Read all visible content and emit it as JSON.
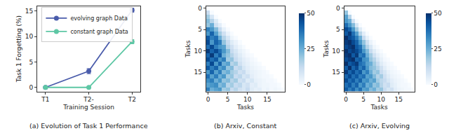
{
  "chart_data": [
    {
      "type": "line",
      "title": "(a) Evolution of Task 1 Performance",
      "x_label": "Training Session",
      "y_label": "Task 1 Forgetting (%)",
      "categories": [
        "T1",
        "T2-",
        "T2"
      ],
      "series": [
        {
          "name": "evolving graph Data",
          "color": "#4a5cab",
          "marker": "circle",
          "values": [
            0,
            3.2,
            15.2
          ],
          "error": [
            0.1,
            0.5,
            0.4
          ]
        },
        {
          "name": "constant graph Data",
          "color": "#5ec7a5",
          "marker": "circle",
          "values": [
            0,
            0,
            9.0
          ],
          "error": [
            0.1,
            0.1,
            0.4
          ]
        }
      ],
      "ylim": [
        -0.8,
        16
      ],
      "yticks": [
        0,
        5,
        10,
        15
      ],
      "grid": false,
      "legend": "upper left"
    },
    {
      "type": "heatmap",
      "title": "(b) Arxiv, Constant",
      "x_label": "Tasks",
      "y_label": "Tasks",
      "x": [
        0,
        1,
        2,
        3,
        4,
        5,
        6,
        7,
        8,
        9,
        10,
        11,
        12,
        13,
        14,
        15,
        16,
        17,
        18,
        19
      ],
      "y": [
        0,
        1,
        2,
        3,
        4,
        5,
        6,
        7,
        8,
        9,
        10,
        11,
        12,
        13,
        14,
        15,
        16,
        17,
        18,
        19
      ],
      "z": [
        [
          0,
          null,
          null,
          null,
          null,
          null,
          null,
          null,
          null,
          null,
          null,
          null,
          null,
          null,
          null,
          null,
          null,
          null,
          null,
          null
        ],
        [
          12,
          0,
          null,
          null,
          null,
          null,
          null,
          null,
          null,
          null,
          null,
          null,
          null,
          null,
          null,
          null,
          null,
          null,
          null,
          null
        ],
        [
          18,
          8,
          0,
          null,
          null,
          null,
          null,
          null,
          null,
          null,
          null,
          null,
          null,
          null,
          null,
          null,
          null,
          null,
          null,
          null
        ],
        [
          22,
          15,
          6,
          0,
          null,
          null,
          null,
          null,
          null,
          null,
          null,
          null,
          null,
          null,
          null,
          null,
          null,
          null,
          null,
          null
        ],
        [
          20,
          25,
          10,
          5,
          0,
          null,
          null,
          null,
          null,
          null,
          null,
          null,
          null,
          null,
          null,
          null,
          null,
          null,
          null,
          null
        ],
        [
          35,
          30,
          22,
          12,
          4,
          0,
          null,
          null,
          null,
          null,
          null,
          null,
          null,
          null,
          null,
          null,
          null,
          null,
          null,
          null
        ],
        [
          30,
          40,
          28,
          18,
          10,
          3,
          0,
          null,
          null,
          null,
          null,
          null,
          null,
          null,
          null,
          null,
          null,
          null,
          null,
          null
        ],
        [
          42,
          35,
          38,
          25,
          15,
          8,
          2,
          0,
          null,
          null,
          null,
          null,
          null,
          null,
          null,
          null,
          null,
          null,
          null,
          null
        ],
        [
          45,
          30,
          40,
          35,
          20,
          12,
          6,
          3,
          0,
          null,
          null,
          null,
          null,
          null,
          null,
          null,
          null,
          null,
          null,
          null
        ],
        [
          38,
          45,
          35,
          30,
          28,
          15,
          10,
          5,
          2,
          0,
          null,
          null,
          null,
          null,
          null,
          null,
          null,
          null,
          null,
          null
        ],
        [
          48,
          40,
          45,
          38,
          30,
          22,
          12,
          8,
          4,
          2,
          0,
          null,
          null,
          null,
          null,
          null,
          null,
          null,
          null,
          null
        ],
        [
          40,
          48,
          35,
          42,
          25,
          20,
          15,
          10,
          6,
          3,
          1,
          0,
          null,
          null,
          null,
          null,
          null,
          null,
          null,
          null
        ],
        [
          45,
          38,
          42,
          30,
          35,
          18,
          20,
          12,
          8,
          5,
          3,
          1,
          0,
          null,
          null,
          null,
          null,
          null,
          null,
          null
        ],
        [
          35,
          45,
          30,
          40,
          25,
          28,
          15,
          18,
          10,
          6,
          4,
          2,
          1,
          0,
          null,
          null,
          null,
          null,
          null,
          null
        ],
        [
          42,
          35,
          40,
          28,
          32,
          20,
          22,
          12,
          14,
          8,
          5,
          3,
          2,
          1,
          0,
          null,
          null,
          null,
          null,
          null
        ],
        [
          30,
          40,
          28,
          35,
          22,
          25,
          18,
          15,
          10,
          12,
          6,
          4,
          3,
          2,
          1,
          0,
          null,
          null,
          null,
          null
        ],
        [
          38,
          28,
          35,
          25,
          30,
          18,
          20,
          12,
          14,
          8,
          10,
          5,
          3,
          2,
          1,
          1,
          0,
          null,
          null,
          null
        ],
        [
          32,
          35,
          25,
          30,
          20,
          22,
          15,
          18,
          10,
          12,
          6,
          8,
          4,
          3,
          2,
          1,
          1,
          0,
          null,
          null
        ],
        [
          28,
          30,
          32,
          22,
          25,
          15,
          18,
          12,
          14,
          8,
          10,
          5,
          6,
          3,
          2,
          2,
          1,
          1,
          0,
          null
        ],
        [
          35,
          25,
          28,
          30,
          18,
          20,
          12,
          15,
          10,
          8,
          12,
          6,
          4,
          5,
          2,
          3,
          1,
          2,
          1,
          0
        ]
      ],
      "xlim": [
        -0.5,
        19.5
      ],
      "ylim": [
        19.5,
        -0.5
      ],
      "xticks": [
        0,
        5,
        10,
        15
      ],
      "yticks": [
        0,
        5,
        10,
        15
      ],
      "colorbar_range": [
        0,
        50
      ],
      "colorbar_ticks": [
        0,
        25,
        50
      ]
    },
    {
      "type": "heatmap",
      "title": "(c) Arxiv, Evolving",
      "x_label": "Tasks",
      "y_label": "Tasks",
      "x": [
        0,
        1,
        2,
        3,
        4,
        5,
        6,
        7,
        8,
        9,
        10,
        11,
        12,
        13,
        14,
        15,
        16,
        17,
        18,
        19
      ],
      "y": [
        0,
        1,
        2,
        3,
        4,
        5,
        6,
        7,
        8,
        9,
        10,
        11,
        12,
        13,
        14,
        15,
        16,
        17,
        18,
        19
      ],
      "z": [
        [
          0,
          null,
          null,
          null,
          null,
          null,
          null,
          null,
          null,
          null,
          null,
          null,
          null,
          null,
          null,
          null,
          null,
          null,
          null,
          null
        ],
        [
          20,
          0,
          null,
          null,
          null,
          null,
          null,
          null,
          null,
          null,
          null,
          null,
          null,
          null,
          null,
          null,
          null,
          null,
          null,
          null
        ],
        [
          28,
          15,
          0,
          null,
          null,
          null,
          null,
          null,
          null,
          null,
          null,
          null,
          null,
          null,
          null,
          null,
          null,
          null,
          null,
          null
        ],
        [
          30,
          25,
          10,
          0,
          null,
          null,
          null,
          null,
          null,
          null,
          null,
          null,
          null,
          null,
          null,
          null,
          null,
          null,
          null,
          null
        ],
        [
          38,
          30,
          22,
          8,
          0,
          null,
          null,
          null,
          null,
          null,
          null,
          null,
          null,
          null,
          null,
          null,
          null,
          null,
          null,
          null
        ],
        [
          45,
          40,
          30,
          18,
          6,
          0,
          null,
          null,
          null,
          null,
          null,
          null,
          null,
          null,
          null,
          null,
          null,
          null,
          null,
          null
        ],
        [
          42,
          48,
          38,
          28,
          15,
          5,
          0,
          null,
          null,
          null,
          null,
          null,
          null,
          null,
          null,
          null,
          null,
          null,
          null,
          null
        ],
        [
          50,
          45,
          42,
          35,
          25,
          12,
          4,
          0,
          null,
          null,
          null,
          null,
          null,
          null,
          null,
          null,
          null,
          null,
          null,
          null
        ],
        [
          48,
          50,
          45,
          40,
          30,
          20,
          10,
          3,
          0,
          null,
          null,
          null,
          null,
          null,
          null,
          null,
          null,
          null,
          null,
          null
        ],
        [
          45,
          48,
          50,
          42,
          38,
          25,
          15,
          8,
          2,
          0,
          null,
          null,
          null,
          null,
          null,
          null,
          null,
          null,
          null,
          null
        ],
        [
          50,
          45,
          48,
          45,
          40,
          30,
          22,
          12,
          6,
          2,
          0,
          null,
          null,
          null,
          null,
          null,
          null,
          null,
          null,
          null
        ],
        [
          48,
          50,
          42,
          48,
          35,
          38,
          25,
          18,
          10,
          5,
          2,
          0,
          null,
          null,
          null,
          null,
          null,
          null,
          null,
          null
        ],
        [
          45,
          48,
          50,
          40,
          42,
          32,
          30,
          20,
          15,
          8,
          4,
          1,
          0,
          null,
          null,
          null,
          null,
          null,
          null,
          null
        ],
        [
          50,
          42,
          45,
          48,
          38,
          35,
          28,
          25,
          18,
          12,
          6,
          3,
          1,
          0,
          null,
          null,
          null,
          null,
          null,
          null
        ],
        [
          42,
          50,
          40,
          45,
          35,
          40,
          30,
          22,
          20,
          15,
          10,
          5,
          2,
          1,
          0,
          null,
          null,
          null,
          null,
          null
        ],
        [
          48,
          40,
          45,
          38,
          42,
          30,
          35,
          25,
          18,
          20,
          12,
          8,
          4,
          2,
          1,
          0,
          null,
          null,
          null,
          null
        ],
        [
          40,
          45,
          38,
          42,
          35,
          38,
          28,
          30,
          22,
          15,
          18,
          10,
          6,
          3,
          2,
          1,
          0,
          null,
          null,
          null
        ],
        [
          45,
          38,
          42,
          35,
          40,
          30,
          32,
          25,
          28,
          18,
          14,
          12,
          8,
          5,
          3,
          2,
          1,
          0,
          null,
          null
        ],
        [
          38,
          42,
          35,
          40,
          30,
          35,
          25,
          28,
          20,
          22,
          15,
          10,
          12,
          6,
          4,
          2,
          1,
          1,
          0,
          null
        ],
        [
          42,
          35,
          40,
          32,
          38,
          28,
          30,
          22,
          25,
          18,
          20,
          12,
          8,
          10,
          5,
          3,
          2,
          1,
          1,
          0
        ]
      ],
      "xlim": [
        -0.5,
        19.5
      ],
      "ylim": [
        19.5,
        -0.5
      ],
      "xticks": [
        0,
        5,
        10,
        15
      ],
      "yticks": [
        0,
        5,
        10,
        15
      ],
      "colorbar_range": [
        0,
        50
      ],
      "colorbar_ticks": [
        0,
        25,
        50
      ]
    }
  ]
}
